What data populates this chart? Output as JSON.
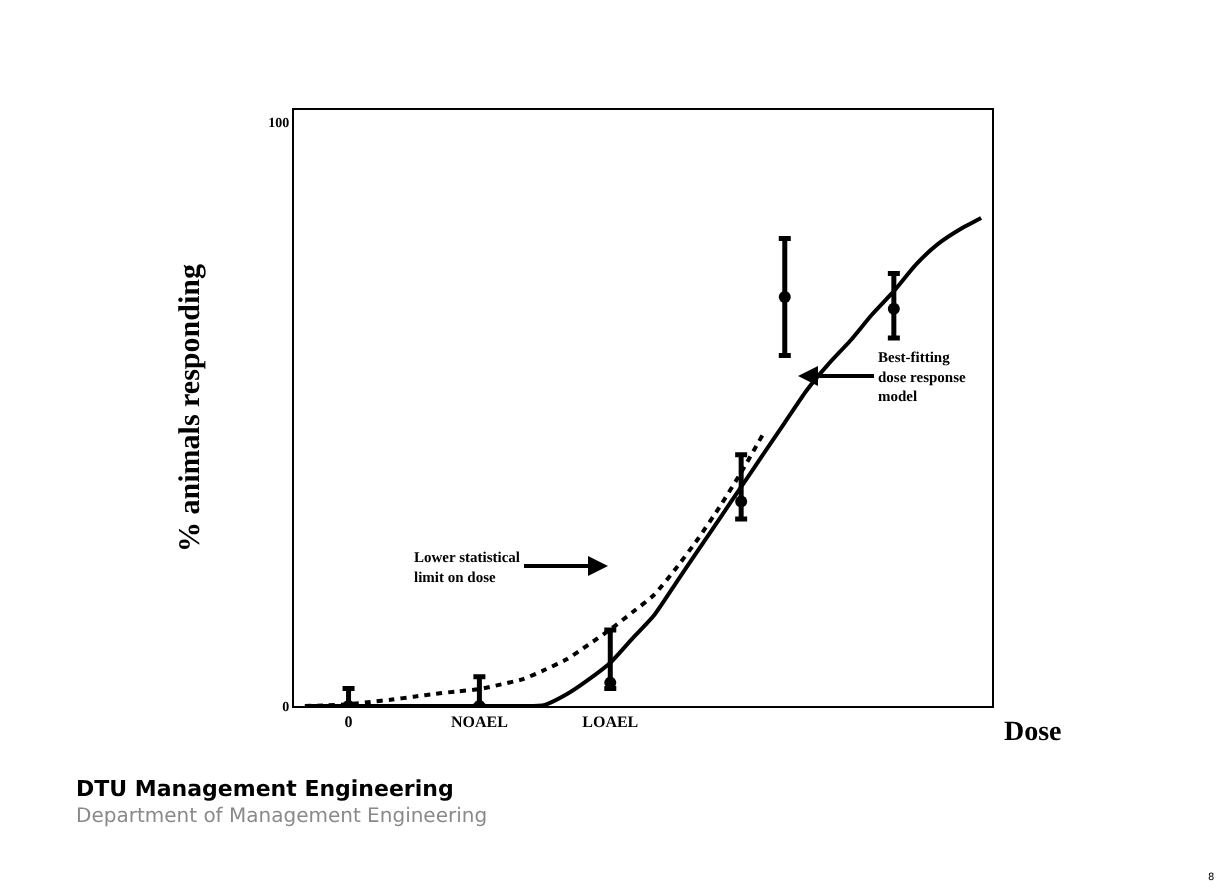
{
  "chart_data": {
    "type": "scatter",
    "xlabel": "Dose",
    "ylabel": "% animals responding",
    "categories": [
      null,
      null,
      "0",
      null,
      null,
      null,
      null,
      null,
      "NOAEL",
      null,
      null,
      null,
      null,
      null,
      "LOAEL",
      null,
      null,
      null,
      null,
      null,
      null,
      null,
      null,
      null,
      null,
      null,
      null,
      null,
      null,
      null,
      null,
      null
    ],
    "ylim": [
      0,
      102
    ],
    "yticks": [
      0,
      100
    ],
    "series": [
      {
        "type": "line",
        "color": "#000000",
        "line_style": "solid",
        "marker": "none",
        "values": [
          0,
          0,
          0,
          0,
          0,
          0,
          0,
          0,
          0,
          0,
          0,
          0.2,
          2,
          4.5,
          7.4,
          11.5,
          15.5,
          21,
          26.5,
          32,
          37.5,
          43,
          48.5,
          54,
          58.5,
          62.5,
          67,
          71,
          75.5,
          79,
          81.5,
          83.5
        ]
      },
      {
        "type": "line",
        "color": "#000000",
        "line_style": "dotted",
        "marker": "none",
        "values": [
          0,
          0.1,
          0.3,
          0.7,
          1.1,
          1.6,
          2.1,
          2.5,
          2.9,
          3.7,
          4.6,
          6.2,
          8,
          10.5,
          13.1,
          16,
          19,
          23.5,
          28.5,
          34,
          40,
          46.5,
          null,
          null,
          null,
          null,
          null,
          null,
          null,
          null,
          null,
          null
        ]
      },
      {
        "color": "#000000",
        "marker": "circle",
        "values": [
          null,
          null,
          0,
          null,
          null,
          null,
          null,
          null,
          0,
          null,
          null,
          null,
          null,
          null,
          4,
          null,
          null,
          null,
          null,
          null,
          35,
          null,
          70,
          null,
          null,
          null,
          null,
          68,
          null,
          null,
          null,
          null
        ],
        "errors": [
          null,
          null,
          [
            0,
            3
          ],
          null,
          null,
          null,
          null,
          null,
          [
            0,
            5
          ],
          null,
          null,
          null,
          null,
          null,
          [
            3,
            13
          ],
          null,
          null,
          null,
          null,
          null,
          [
            32,
            43
          ],
          null,
          [
            60,
            80
          ],
          null,
          null,
          null,
          null,
          [
            63,
            74
          ],
          null,
          null,
          null,
          null
        ]
      }
    ],
    "annotations": [
      "Lower statistical limit on dose",
      "Best-fitting dose response model",
      "DTU Management Engineering",
      "Department of Management Engineering",
      "8"
    ]
  }
}
